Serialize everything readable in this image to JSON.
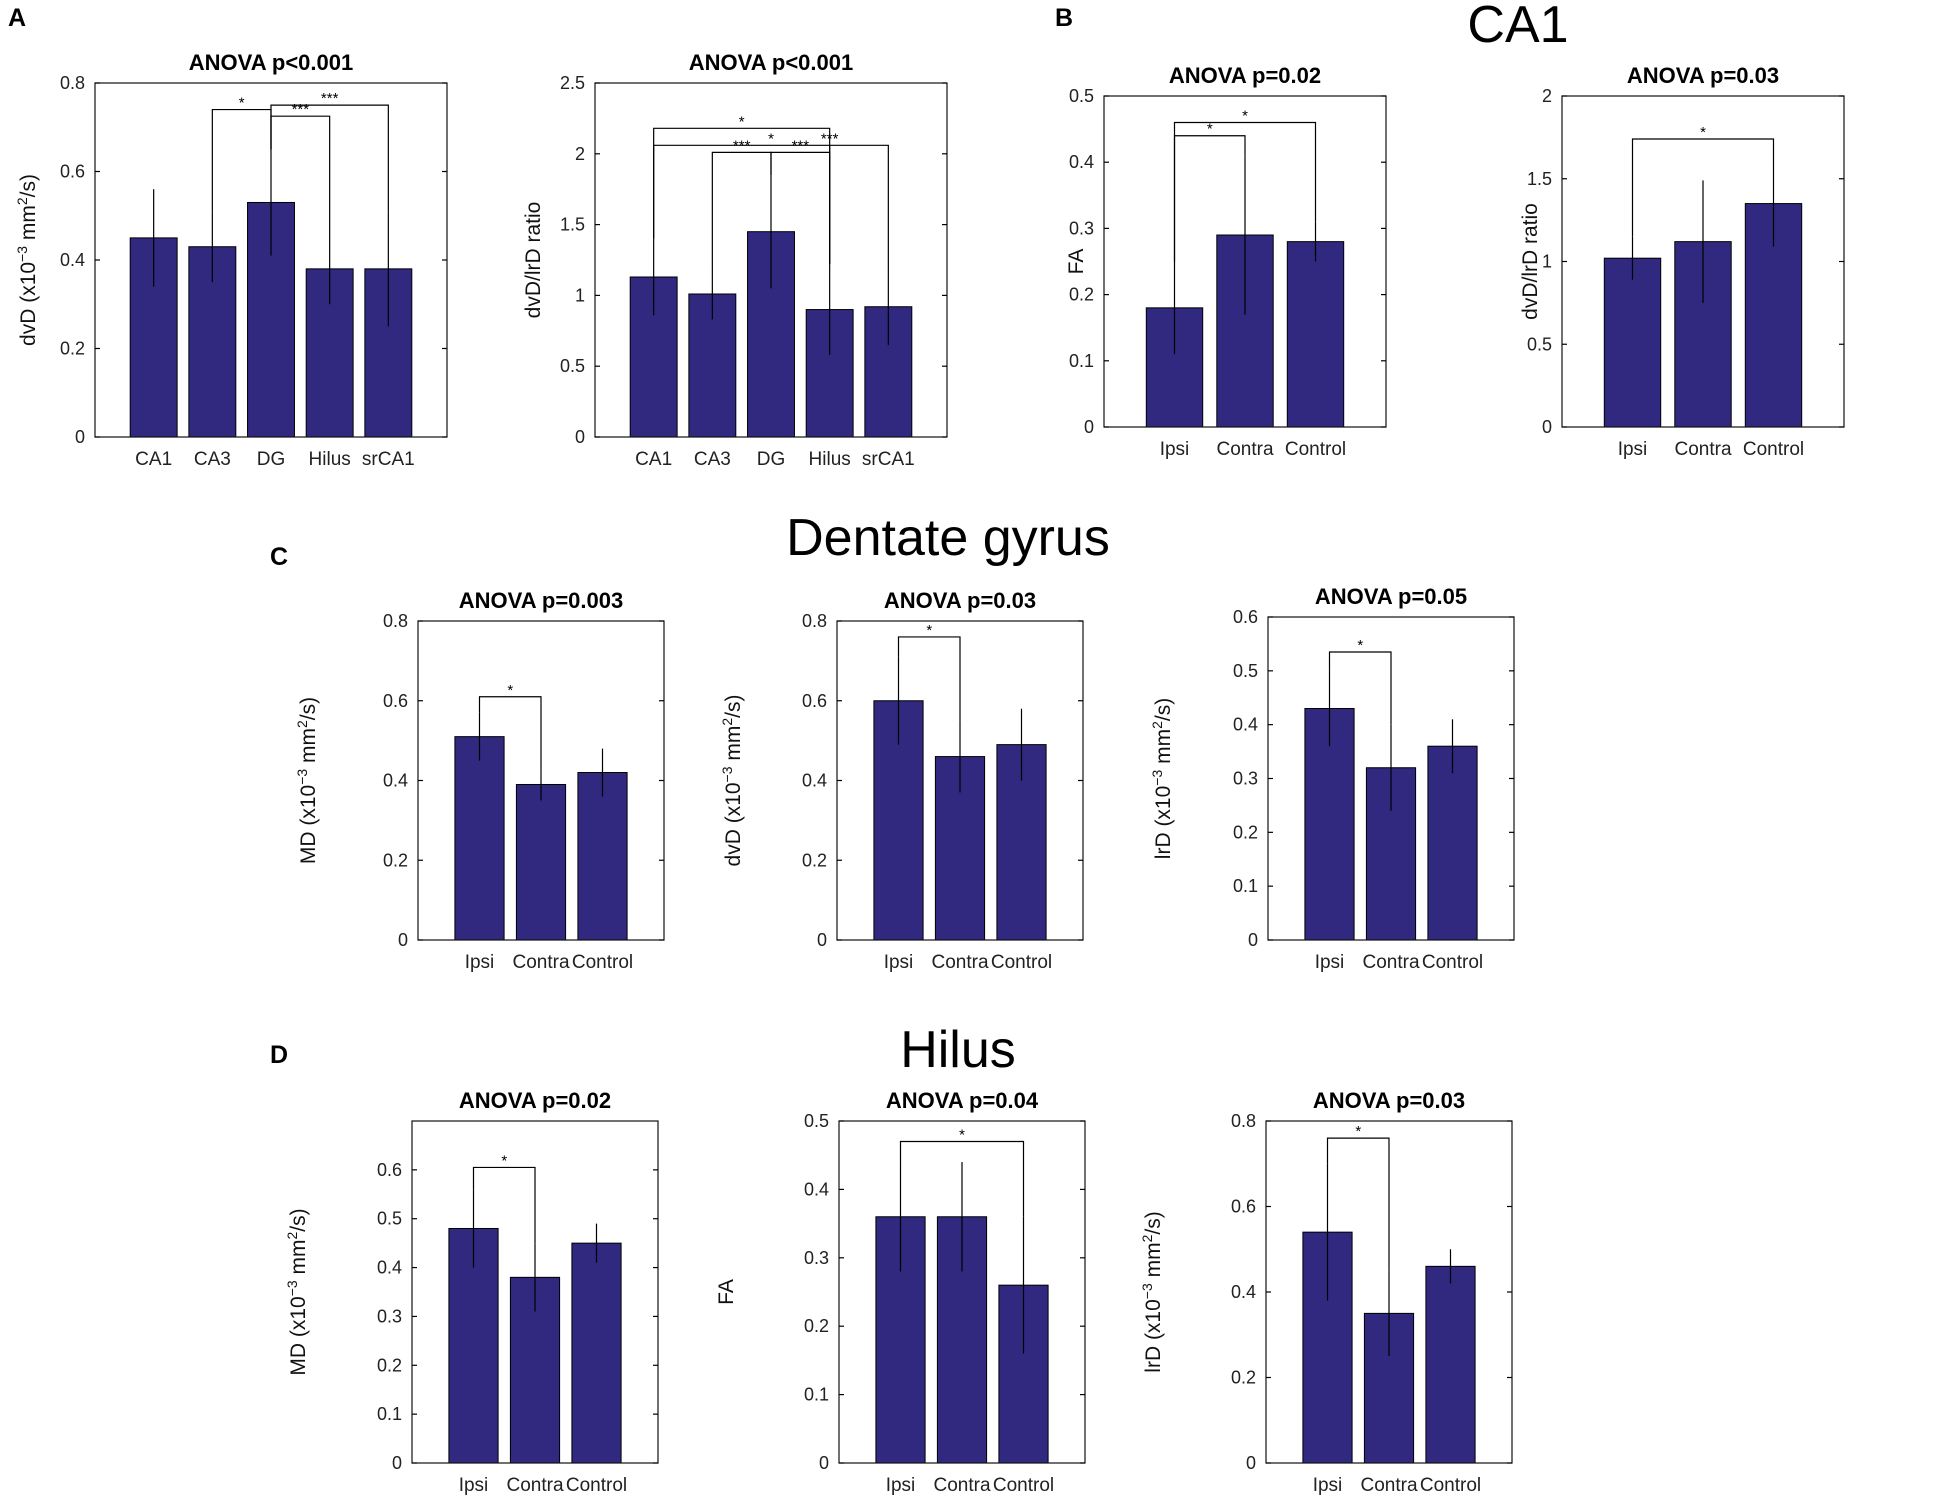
{
  "figure": {
    "panels": [
      {
        "letter": "A"
      },
      {
        "letter": "B",
        "section_title": "CA1"
      },
      {
        "letter": "C",
        "section_title": "Dentate gyrus"
      },
      {
        "letter": "D",
        "section_title": "Hilus"
      }
    ]
  },
  "chart_data": [
    {
      "id": "A1",
      "panel": "A",
      "type": "bar",
      "title": "ANOVA p<0.001",
      "ylabel": {
        "base": "dvD (x10",
        "sup1": "−3",
        "mid": " mm",
        "sup2": "2",
        "tail": "/s)"
      },
      "categories": [
        "CA1",
        "CA3",
        "DG",
        "Hilus",
        "srCA1"
      ],
      "values": [
        0.45,
        0.43,
        0.53,
        0.38,
        0.38
      ],
      "errors": [
        0.11,
        0.08,
        0.12,
        0.08,
        0.13
      ],
      "ylim": [
        0,
        0.8
      ],
      "yticks": [
        {
          "v": 0,
          "label": "0"
        },
        {
          "v": 0.2,
          "label": "0.2"
        },
        {
          "v": 0.4,
          "label": "0.4"
        },
        {
          "v": 0.6,
          "label": "0.6"
        },
        {
          "v": 0.8,
          "label": "0.8"
        }
      ],
      "significance": [
        {
          "from": 1,
          "to": 2,
          "level": 0.74,
          "label": "*"
        },
        {
          "from": 2,
          "to": 3,
          "level": 0.725,
          "label": "***"
        },
        {
          "from": 2,
          "to": 4,
          "level": 0.75,
          "label": "***"
        }
      ]
    },
    {
      "id": "A2",
      "panel": "A",
      "type": "bar",
      "title": "ANOVA p<0.001",
      "ylabel": {
        "base": "dvD/lrD ratio"
      },
      "categories": [
        "CA1",
        "CA3",
        "DG",
        "Hilus",
        "srCA1"
      ],
      "values": [
        1.13,
        1.01,
        1.45,
        0.9,
        0.92
      ],
      "errors": [
        0.27,
        0.18,
        0.4,
        0.32,
        0.27
      ],
      "ylim": [
        0,
        2.5
      ],
      "yticks": [
        {
          "v": 0,
          "label": "0"
        },
        {
          "v": 0.5,
          "label": "0.5"
        },
        {
          "v": 1,
          "label": "1"
        },
        {
          "v": 1.5,
          "label": "1.5"
        },
        {
          "v": 2,
          "label": "2"
        },
        {
          "v": 2.5,
          "label": "2.5"
        }
      ],
      "significance": [
        {
          "from": 0,
          "to": 3,
          "level": 2.18,
          "label": "*"
        },
        {
          "from": 0,
          "to": 4,
          "level": 2.06,
          "label": "*"
        },
        {
          "from": 1,
          "to": 2,
          "level": 2.01,
          "label": "***"
        },
        {
          "from": 2,
          "to": 3,
          "level": 2.01,
          "label": "***"
        },
        {
          "from": 3,
          "to": 3,
          "level": 2.06,
          "label": "***"
        }
      ]
    },
    {
      "id": "B1",
      "panel": "B",
      "type": "bar",
      "title": "ANOVA p=0.02",
      "ylabel": {
        "base": "FA"
      },
      "categories": [
        "Ipsi",
        "Contra",
        "Control"
      ],
      "values": [
        0.18,
        0.29,
        0.28
      ],
      "errors": [
        0.07,
        0.12,
        0.03
      ],
      "ylim": [
        0,
        0.5
      ],
      "yticks": [
        {
          "v": 0,
          "label": "0"
        },
        {
          "v": 0.1,
          "label": "0.1"
        },
        {
          "v": 0.2,
          "label": "0.2"
        },
        {
          "v": 0.3,
          "label": "0.3"
        },
        {
          "v": 0.4,
          "label": "0.4"
        },
        {
          "v": 0.5,
          "label": "0.5"
        }
      ],
      "significance": [
        {
          "from": 0,
          "to": 1,
          "level": 0.44,
          "label": "*"
        },
        {
          "from": 0,
          "to": 2,
          "level": 0.46,
          "label": "*"
        }
      ]
    },
    {
      "id": "B2",
      "panel": "B",
      "type": "bar",
      "title": "ANOVA p=0.03",
      "ylabel": {
        "base": "dvD/lrD ratio"
      },
      "categories": [
        "Ipsi",
        "Contra",
        "Control"
      ],
      "values": [
        1.02,
        1.12,
        1.35
      ],
      "errors": [
        0.13,
        0.37,
        0.26
      ],
      "ylim": [
        0,
        2
      ],
      "yticks": [
        {
          "v": 0,
          "label": "0"
        },
        {
          "v": 0.5,
          "label": "0.5"
        },
        {
          "v": 1,
          "label": "1"
        },
        {
          "v": 1.5,
          "label": "1.5"
        },
        {
          "v": 2,
          "label": "2"
        }
      ],
      "significance": [
        {
          "from": 0,
          "to": 2,
          "level": 1.74,
          "label": "*"
        }
      ]
    },
    {
      "id": "C1",
      "panel": "C",
      "type": "bar",
      "title": "ANOVA p=0.003",
      "ylabel": {
        "base": "MD (x10",
        "sup1": "−3",
        "mid": " mm",
        "sup2": "2",
        "tail": "/s)"
      },
      "categories": [
        "Ipsi",
        "Contra",
        "Control"
      ],
      "values": [
        0.51,
        0.39,
        0.42
      ],
      "errors": [
        0.06,
        0.04,
        0.06
      ],
      "ylim": [
        0,
        0.8
      ],
      "yticks": [
        {
          "v": 0,
          "label": "0"
        },
        {
          "v": 0.2,
          "label": "0.2"
        },
        {
          "v": 0.4,
          "label": "0.4"
        },
        {
          "v": 0.6,
          "label": "0.6"
        },
        {
          "v": 0.8,
          "label": "0.8"
        }
      ],
      "significance": [
        {
          "from": 0,
          "to": 1,
          "level": 0.61,
          "label": "*"
        }
      ]
    },
    {
      "id": "C2",
      "panel": "C",
      "type": "bar",
      "title": "ANOVA p=0.03",
      "ylabel": {
        "base": "dvD (x10",
        "sup1": "−3",
        "mid": " mm",
        "sup2": "2",
        "tail": "/s)"
      },
      "categories": [
        "Ipsi",
        "Contra",
        "Control"
      ],
      "values": [
        0.6,
        0.46,
        0.49
      ],
      "errors": [
        0.11,
        0.09,
        0.09
      ],
      "ylim": [
        0,
        0.8
      ],
      "yticks": [
        {
          "v": 0,
          "label": "0"
        },
        {
          "v": 0.2,
          "label": "0.2"
        },
        {
          "v": 0.4,
          "label": "0.4"
        },
        {
          "v": 0.6,
          "label": "0.6"
        },
        {
          "v": 0.8,
          "label": "0.8"
        }
      ],
      "significance": [
        {
          "from": 0,
          "to": 1,
          "level": 0.76,
          "label": "*"
        }
      ]
    },
    {
      "id": "C3",
      "panel": "C",
      "type": "bar",
      "title": "ANOVA p=0.05",
      "ylabel": {
        "base": "lrD (x10",
        "sup1": "−3",
        "mid": " mm",
        "sup2": "2",
        "tail": "/s)"
      },
      "categories": [
        "Ipsi",
        "Contra",
        "Control"
      ],
      "values": [
        0.43,
        0.32,
        0.36
      ],
      "errors": [
        0.07,
        0.08,
        0.05
      ],
      "ylim": [
        0,
        0.6
      ],
      "yticks": [
        {
          "v": 0,
          "label": "0"
        },
        {
          "v": 0.1,
          "label": "0.1"
        },
        {
          "v": 0.2,
          "label": "0.2"
        },
        {
          "v": 0.3,
          "label": "0.3"
        },
        {
          "v": 0.4,
          "label": "0.4"
        },
        {
          "v": 0.5,
          "label": "0.5"
        },
        {
          "v": 0.6,
          "label": "0.6"
        }
      ],
      "significance": [
        {
          "from": 0,
          "to": 1,
          "level": 0.535,
          "label": "*"
        }
      ]
    },
    {
      "id": "D1",
      "panel": "D",
      "type": "bar",
      "title": "ANOVA p=0.02",
      "ylabel": {
        "base": "MD (x10",
        "sup1": "−3",
        "mid": " mm",
        "sup2": "2",
        "tail": "/s)"
      },
      "categories": [
        "Ipsi",
        "Contra",
        "Control"
      ],
      "values": [
        0.48,
        0.38,
        0.45
      ],
      "errors": [
        0.08,
        0.07,
        0.04
      ],
      "ylim": [
        0,
        0.7
      ],
      "yticks": [
        {
          "v": 0,
          "label": "0"
        },
        {
          "v": 0.1,
          "label": "0.1"
        },
        {
          "v": 0.2,
          "label": "0.2"
        },
        {
          "v": 0.3,
          "label": "0.3"
        },
        {
          "v": 0.4,
          "label": "0.4"
        },
        {
          "v": 0.5,
          "label": "0.5"
        },
        {
          "v": 0.6,
          "label": "0.6"
        }
      ],
      "significance": [
        {
          "from": 0,
          "to": 1,
          "level": 0.605,
          "label": "*"
        }
      ]
    },
    {
      "id": "D2",
      "panel": "D",
      "type": "bar",
      "title": "ANOVA p=0.04",
      "ylabel": {
        "base": "FA"
      },
      "categories": [
        "Ipsi",
        "Contra",
        "Control"
      ],
      "values": [
        0.36,
        0.36,
        0.26
      ],
      "errors": [
        0.08,
        0.08,
        0.1
      ],
      "ylim": [
        0,
        0.5
      ],
      "yticks": [
        {
          "v": 0,
          "label": "0"
        },
        {
          "v": 0.1,
          "label": "0.1"
        },
        {
          "v": 0.2,
          "label": "0.2"
        },
        {
          "v": 0.3,
          "label": "0.3"
        },
        {
          "v": 0.4,
          "label": "0.4"
        },
        {
          "v": 0.5,
          "label": "0.5"
        }
      ],
      "significance": [
        {
          "from": 0,
          "to": 2,
          "level": 0.47,
          "label": "*"
        }
      ]
    },
    {
      "id": "D3",
      "panel": "D",
      "type": "bar",
      "title": "ANOVA p=0.03",
      "ylabel": {
        "base": "lrD (x10",
        "sup1": "−3",
        "mid": " mm",
        "sup2": "2",
        "tail": "/s)"
      },
      "categories": [
        "Ipsi",
        "Contra",
        "Control"
      ],
      "values": [
        0.54,
        0.35,
        0.46
      ],
      "errors": [
        0.16,
        0.1,
        0.04
      ],
      "ylim": [
        0,
        0.8
      ],
      "yticks": [
        {
          "v": 0,
          "label": "0"
        },
        {
          "v": 0.2,
          "label": "0.2"
        },
        {
          "v": 0.4,
          "label": "0.4"
        },
        {
          "v": 0.6,
          "label": "0.6"
        },
        {
          "v": 0.8,
          "label": "0.8"
        }
      ],
      "significance": [
        {
          "from": 0,
          "to": 1,
          "level": 0.76,
          "label": "*"
        }
      ]
    }
  ]
}
